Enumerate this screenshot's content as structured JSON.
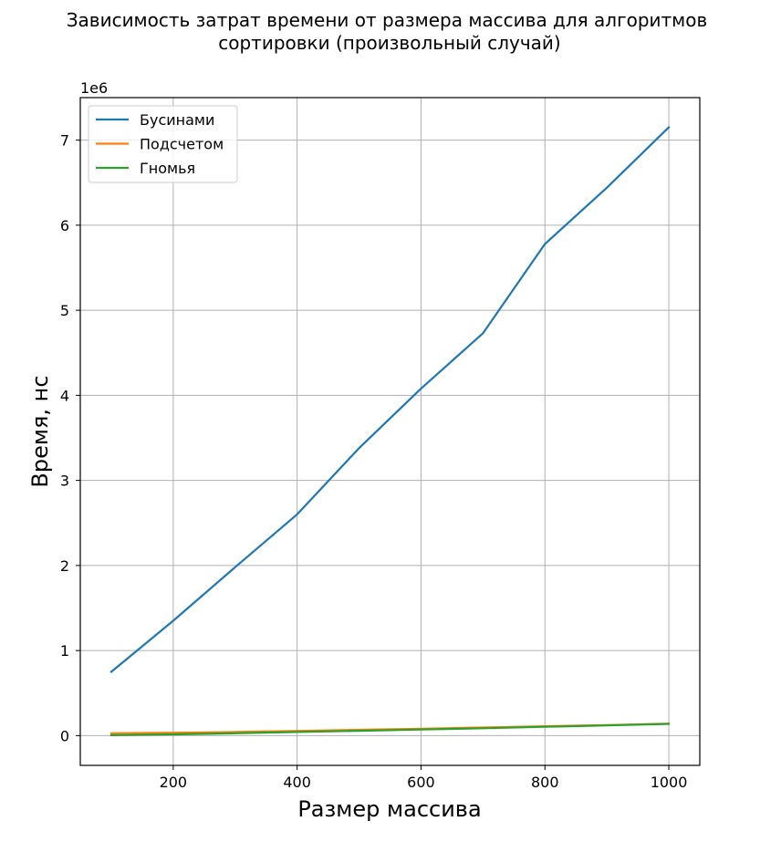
{
  "chart_data": {
    "type": "line",
    "title_line1": "Зависимость затрат времени от размера массива для алгоритмов",
    "title_line2": "сортировки (произвольный случай)",
    "xlabel": "Размер массива",
    "ylabel": "Время, нс",
    "y_scale_label": "1e6",
    "x": [
      100,
      200,
      300,
      400,
      500,
      600,
      700,
      800,
      900,
      1000
    ],
    "series": [
      {
        "name": "Бусинами",
        "color": "#1f77b4",
        "values": [
          750000,
          1350000,
          1980000,
          2600000,
          3380000,
          4080000,
          4730000,
          5780000,
          6440000,
          7150000
        ]
      },
      {
        "name": "Подсчетом",
        "color": "#ff7f0e",
        "values": [
          28000,
          34000,
          43000,
          55000,
          68000,
          81000,
          95000,
          110000,
          124000,
          141000
        ]
      },
      {
        "name": "Гномья",
        "color": "#2ca02c",
        "values": [
          5000,
          15000,
          28000,
          42000,
          56000,
          71000,
          87000,
          104000,
          120000,
          138000
        ]
      }
    ],
    "xlim": [
      50,
      1050
    ],
    "ylim": [
      -350000,
      7500000
    ],
    "x_ticks": [
      200,
      400,
      600,
      800,
      1000
    ],
    "x_tick_labels": [
      "200",
      "400",
      "600",
      "800",
      "1000"
    ],
    "y_ticks": [
      0,
      1000000,
      2000000,
      3000000,
      4000000,
      5000000,
      6000000,
      7000000
    ],
    "y_tick_labels": [
      "0",
      "1",
      "2",
      "3",
      "4",
      "5",
      "6",
      "7"
    ],
    "grid": true,
    "legend_position": "top-left"
  }
}
